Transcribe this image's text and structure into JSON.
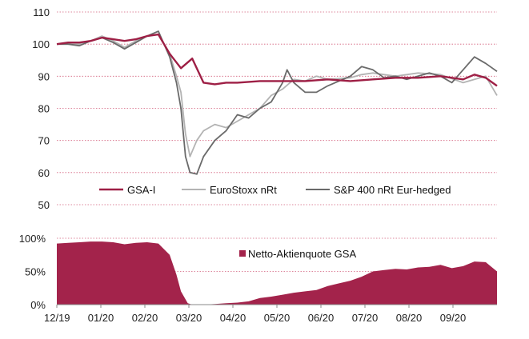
{
  "colors": {
    "gsa": "#9e1f45",
    "eurostoxx": "#b3b3b3",
    "sp400": "#6a6a6a",
    "grid": "#d4607d",
    "area": "#a3234b"
  },
  "chart_data": [
    {
      "type": "line",
      "title": "",
      "xlabel": "",
      "ylabel": "",
      "ylim": [
        50,
        110
      ],
      "yticks": [
        "50",
        "60",
        "70",
        "80",
        "90",
        "100",
        "110"
      ],
      "grid": "horizontal dotted",
      "legend_position": "bottom",
      "x_range": [
        0,
        195
      ],
      "series": [
        {
          "name": "GSA-I",
          "color_key": "gsa",
          "x": [
            0,
            5,
            10,
            15,
            20,
            25,
            30,
            35,
            40,
            45,
            50,
            55,
            60,
            65,
            70,
            75,
            80,
            90,
            100,
            110,
            120,
            130,
            140,
            150,
            160,
            170,
            180,
            185,
            190,
            195
          ],
          "y": [
            100,
            100.5,
            100.5,
            101,
            102,
            101.5,
            101,
            101.5,
            102.5,
            103,
            97,
            92.5,
            95.5,
            88,
            87.5,
            88,
            88,
            88.5,
            88.5,
            88.5,
            89,
            88.5,
            89,
            89.5,
            89.5,
            90,
            89,
            90.5,
            89.5,
            87
          ]
        },
        {
          "name": "EuroStoxx nRt",
          "color_key": "eurostoxx",
          "x": [
            0,
            5,
            10,
            15,
            20,
            25,
            30,
            35,
            40,
            45,
            50,
            53,
            55,
            57,
            59,
            62,
            65,
            70,
            75,
            80,
            85,
            90,
            95,
            100,
            105,
            110,
            115,
            120,
            130,
            135,
            140,
            150,
            155,
            160,
            170,
            180,
            190,
            195
          ],
          "y": [
            100,
            100,
            100,
            101,
            102.5,
            101,
            99,
            101,
            102.5,
            103,
            97,
            90,
            85,
            72,
            65,
            70,
            73,
            75,
            74,
            76,
            78,
            80,
            84,
            86,
            89,
            88.5,
            90,
            89,
            89.5,
            90.5,
            91,
            90,
            90.5,
            91,
            90.5,
            88,
            90,
            84
          ]
        },
        {
          "name": "S&P 400 nRt Eur-hedged",
          "color_key": "sp400",
          "x": [
            0,
            5,
            10,
            15,
            20,
            25,
            30,
            35,
            40,
            45,
            50,
            53,
            55,
            57,
            59,
            62,
            65,
            70,
            75,
            80,
            85,
            90,
            95,
            100,
            102,
            105,
            110,
            115,
            120,
            130,
            135,
            140,
            145,
            150,
            155,
            160,
            165,
            170,
            175,
            180,
            185,
            190,
            195
          ],
          "y": [
            100,
            100,
            99.5,
            101,
            102,
            100.5,
            98.5,
            100.5,
            102.5,
            104,
            96,
            88,
            80,
            65,
            60,
            59.5,
            65,
            70,
            73,
            78,
            77,
            80,
            82,
            88,
            92,
            88,
            85,
            85,
            87,
            90,
            93,
            92,
            89.5,
            90,
            89,
            90,
            91,
            90,
            88,
            92,
            96,
            94,
            91.5
          ]
        }
      ]
    },
    {
      "type": "area",
      "title": "",
      "xlabel": "",
      "ylabel": "",
      "ylim": [
        0,
        100
      ],
      "yticks": [
        "0%",
        "50%",
        "100%"
      ],
      "x_range": [
        0,
        195
      ],
      "x_tick_labels": [
        "12/19",
        "01/20",
        "02/20",
        "03/20",
        "04/20",
        "05/20",
        "06/20",
        "07/20",
        "08/20",
        "09/20"
      ],
      "legend_position": "top-right",
      "series": [
        {
          "name": "Netto-Aktienquote GSA",
          "color_key": "area",
          "x": [
            0,
            5,
            10,
            15,
            20,
            25,
            30,
            35,
            40,
            45,
            50,
            53,
            55,
            57,
            58,
            60,
            65,
            70,
            75,
            80,
            85,
            90,
            95,
            100,
            105,
            110,
            115,
            120,
            125,
            130,
            135,
            140,
            145,
            150,
            155,
            160,
            165,
            170,
            175,
            180,
            185,
            190,
            195
          ],
          "y": [
            92,
            93,
            94,
            95,
            95,
            94,
            91,
            93,
            94,
            92,
            75,
            45,
            20,
            8,
            2,
            0,
            0,
            1,
            2,
            3,
            5,
            10,
            12,
            15,
            18,
            20,
            22,
            28,
            32,
            36,
            42,
            50,
            52,
            54,
            53,
            56,
            57,
            60,
            55,
            58,
            65,
            64,
            50
          ]
        }
      ]
    }
  ]
}
